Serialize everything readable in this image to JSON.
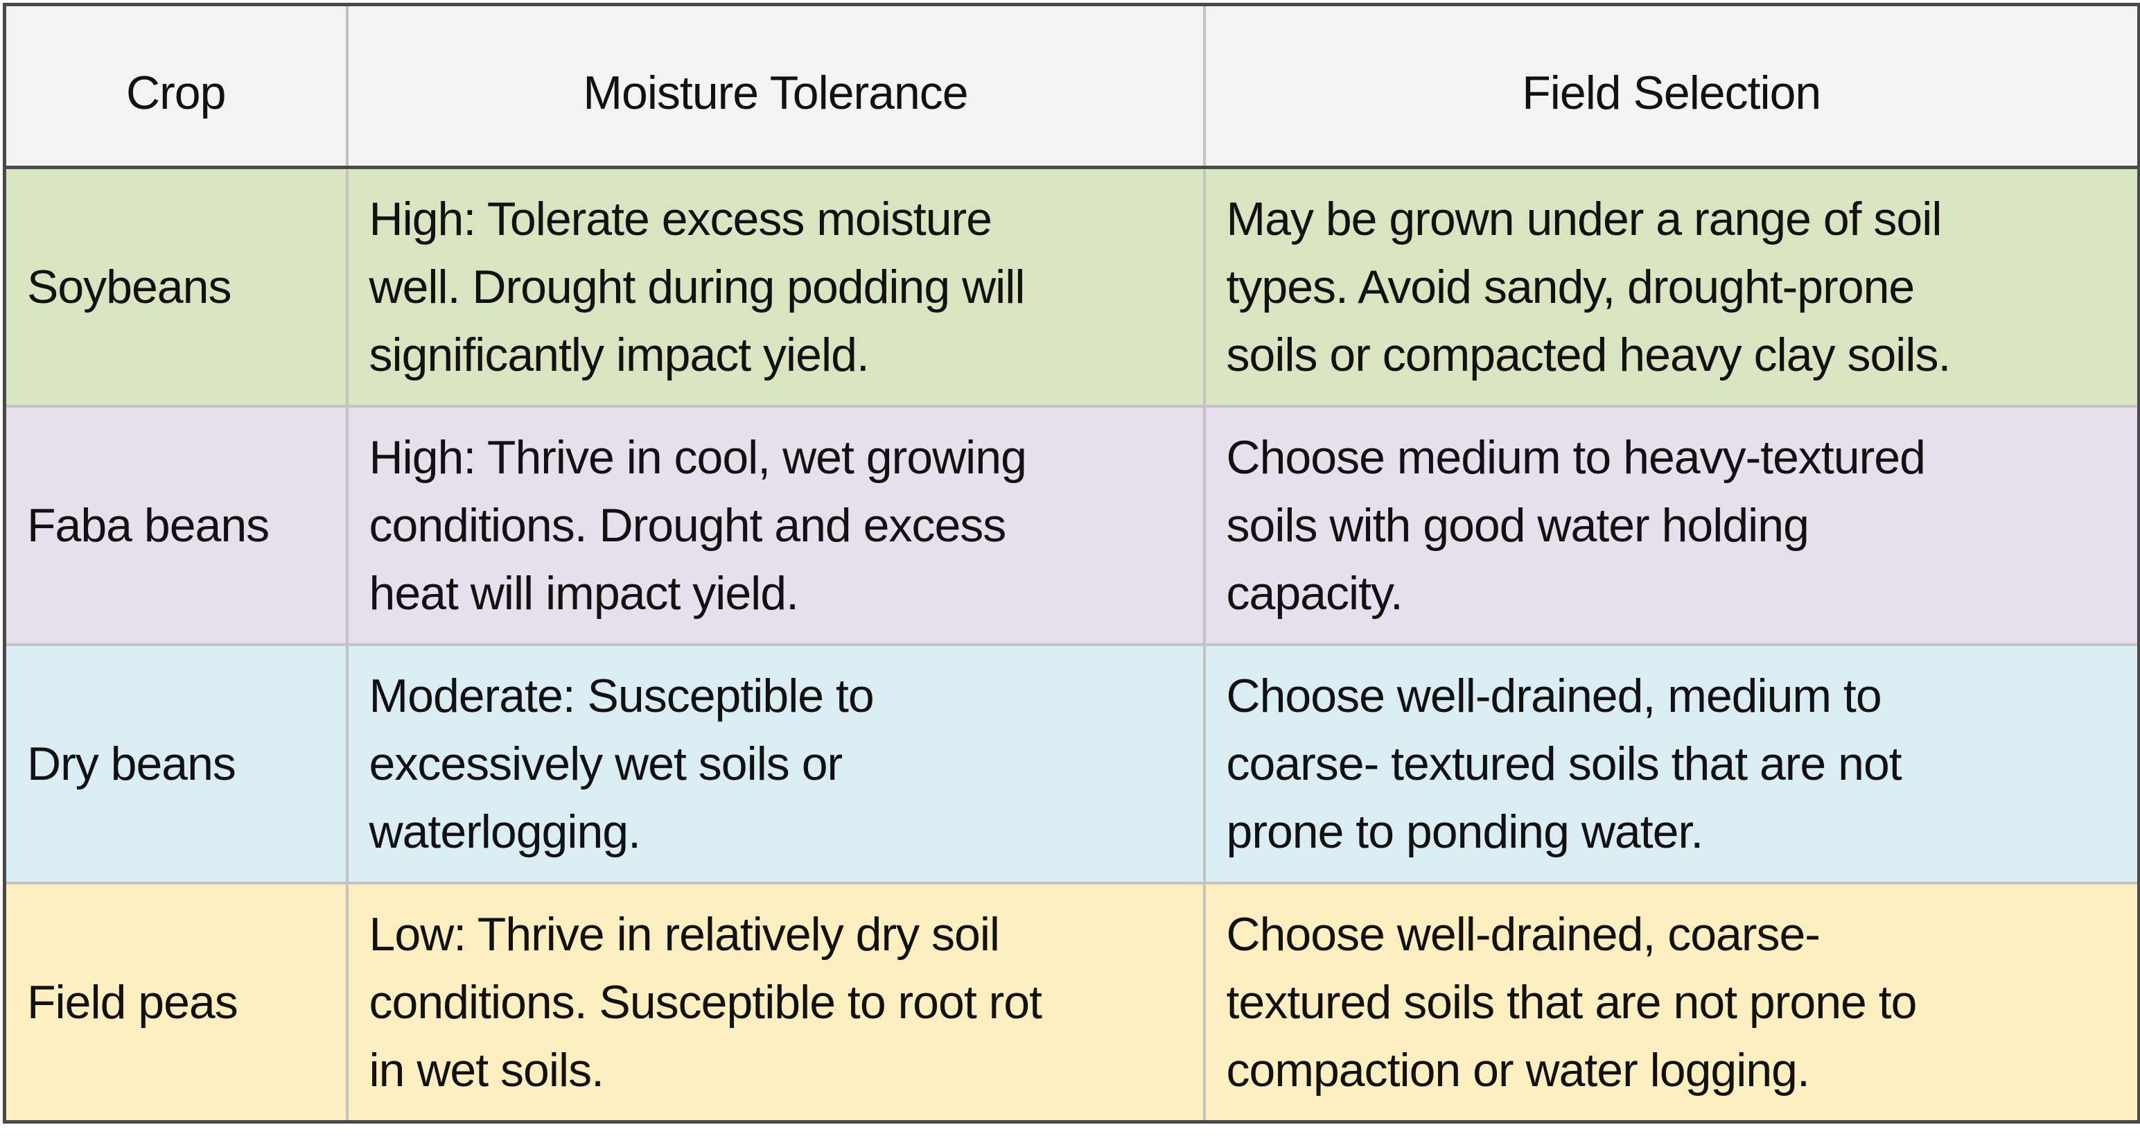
{
  "headers": [
    "Crop",
    "Moisture Tolerance",
    "Field Selection"
  ],
  "colors": {
    "header": "#f3f3f3",
    "soybeans": "#d9e4c0",
    "faba_beans": "#e6e0ec",
    "dry_beans": "#daedf3",
    "field_peas": "#fdefc0",
    "border_outer": "#4a4a4a",
    "border_inner": "#c3c3c3"
  },
  "rows": [
    {
      "crop": "Soybeans",
      "moisture": [
        "High: Tolerate excess moisture",
        "well. Drought during podding will",
        "significantly impact yield."
      ],
      "field": [
        "May be grown under a range of soil",
        "types. Avoid sandy, drought-prone",
        "soils or compacted heavy clay soils."
      ]
    },
    {
      "crop": "Faba beans",
      "moisture": [
        "High: Thrive in cool, wet growing",
        "conditions. Drought and excess",
        "heat will impact yield."
      ],
      "field": [
        "Choose medium to heavy-textured",
        "soils with good water holding",
        "capacity."
      ]
    },
    {
      "crop": "Dry beans",
      "moisture": [
        "Moderate: Susceptible to",
        "excessively wet soils or",
        "waterlogging."
      ],
      "field": [
        "Choose well-drained, medium to",
        "coarse- textured soils that are not",
        "prone to ponding water."
      ]
    },
    {
      "crop": "Field peas",
      "moisture": [
        "Low: Thrive in relatively dry soil",
        "conditions. Susceptible to root rot",
        "in wet soils."
      ],
      "field": [
        "Choose well-drained, coarse-",
        "textured soils that are not prone to",
        "compaction or water logging."
      ]
    }
  ]
}
